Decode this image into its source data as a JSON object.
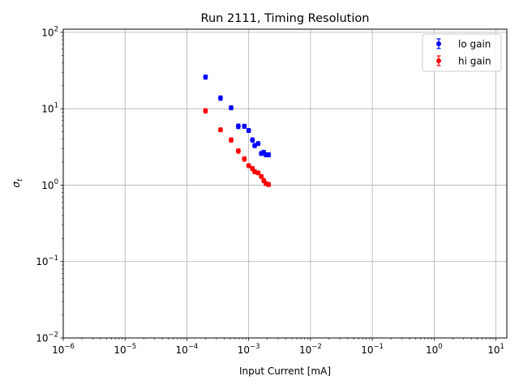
{
  "chart_data": {
    "type": "scatter",
    "title": "Run 2111, Timing Resolution",
    "xlabel": "Input Current [mA]",
    "ylabel": "σ_t",
    "xscale": "log",
    "yscale": "log",
    "xlim": [
      1e-06,
      15
    ],
    "ylim": [
      0.01,
      110
    ],
    "x_ticks": [
      1e-06,
      1e-05,
      0.0001,
      0.001,
      0.01,
      0.1,
      1,
      10
    ],
    "y_ticks": [
      0.01,
      0.1,
      1,
      10,
      100
    ],
    "grid": true,
    "legend_position": "top-right",
    "series": [
      {
        "name": "lo gain",
        "color": "#0000ff",
        "points": [
          {
            "x": 0.0002,
            "y": 26.0,
            "err": 1.6
          },
          {
            "x": 0.00035,
            "y": 13.8,
            "err": 0.9
          },
          {
            "x": 0.00052,
            "y": 10.3,
            "err": 0.6
          },
          {
            "x": 0.00068,
            "y": 5.9,
            "err": 0.4
          },
          {
            "x": 0.00085,
            "y": 5.9,
            "err": 0.35
          },
          {
            "x": 0.001,
            "y": 5.2,
            "err": 0.3
          },
          {
            "x": 0.00115,
            "y": 3.9,
            "err": 0.25
          },
          {
            "x": 0.00125,
            "y": 3.3,
            "err": 0.2
          },
          {
            "x": 0.00142,
            "y": 3.5,
            "err": 0.2
          },
          {
            "x": 0.0016,
            "y": 2.6,
            "err": 0.15
          },
          {
            "x": 0.00175,
            "y": 2.7,
            "err": 0.15
          },
          {
            "x": 0.0019,
            "y": 2.5,
            "err": 0.15
          },
          {
            "x": 0.0021,
            "y": 2.5,
            "err": 0.15
          }
        ]
      },
      {
        "name": "hi gain",
        "color": "#ff0000",
        "points": [
          {
            "x": 0.0002,
            "y": 9.4,
            "err": 0.6
          },
          {
            "x": 0.00035,
            "y": 5.3,
            "err": 0.3
          },
          {
            "x": 0.00052,
            "y": 3.9,
            "err": 0.25
          },
          {
            "x": 0.00068,
            "y": 2.8,
            "err": 0.18
          },
          {
            "x": 0.00085,
            "y": 2.2,
            "err": 0.14
          },
          {
            "x": 0.001,
            "y": 1.8,
            "err": 0.1
          },
          {
            "x": 0.00115,
            "y": 1.65,
            "err": 0.1
          },
          {
            "x": 0.00125,
            "y": 1.5,
            "err": 0.09
          },
          {
            "x": 0.00142,
            "y": 1.45,
            "err": 0.08
          },
          {
            "x": 0.0016,
            "y": 1.3,
            "err": 0.07
          },
          {
            "x": 0.00175,
            "y": 1.15,
            "err": 0.07
          },
          {
            "x": 0.0019,
            "y": 1.05,
            "err": 0.06
          },
          {
            "x": 0.0021,
            "y": 1.02,
            "err": 0.06
          }
        ]
      }
    ]
  }
}
